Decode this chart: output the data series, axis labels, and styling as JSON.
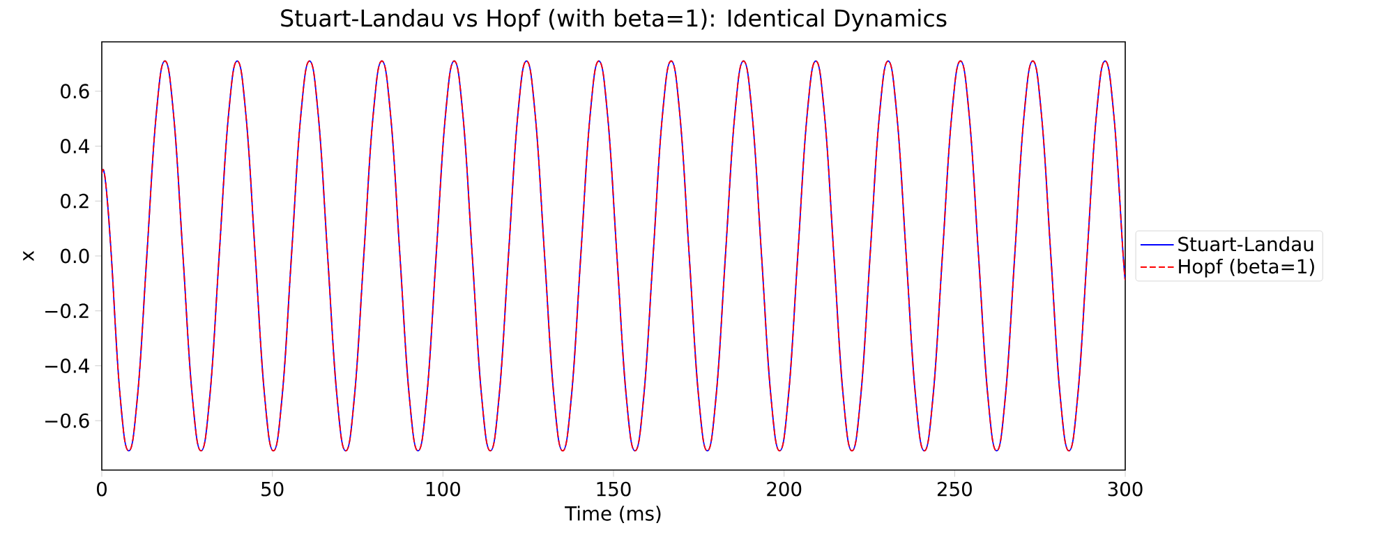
{
  "chart_data": {
    "type": "line",
    "title": "Stuart-Landau vs Hopf (with beta=1): Identical Dynamics",
    "xlabel": "Time (ms)",
    "ylabel": "x",
    "x": [
      0,
      0.6,
      1.5,
      2.8,
      5.3,
      7.9,
      10.55,
      13.2,
      15.85,
      18.5,
      21.15,
      23.8,
      26.45,
      29.1,
      31.75,
      34.4,
      37.05,
      39.7,
      42.35,
      45,
      47.65,
      50.3,
      52.95,
      55.6,
      58.25,
      60.9,
      63.55,
      66.2,
      68.85,
      71.5,
      74.15,
      76.8,
      79.45,
      82.1,
      84.75,
      87.4,
      90.05,
      92.7,
      95.35,
      98,
      100.65,
      103.3,
      105.95,
      108.6,
      111.25,
      113.9,
      116.55,
      119.2,
      121.85,
      124.5,
      127.15,
      129.8,
      132.45,
      135.1,
      137.75,
      140.4,
      143.05,
      145.7,
      148.35,
      151,
      153.65,
      156.3,
      158.95,
      161.6,
      164.25,
      166.9,
      169.55,
      172.2,
      174.85,
      177.5,
      180.15,
      182.8,
      185.45,
      188.1,
      190.75,
      193.4,
      196.05,
      198.7,
      201.35,
      204,
      206.65,
      209.3,
      211.95,
      214.6,
      217.25,
      219.9,
      222.55,
      225.2,
      227.85,
      230.5,
      233.15,
      235.8,
      238.45,
      241.1,
      243.75,
      246.4,
      249.05,
      251.7,
      254.35,
      257,
      259.65,
      262.3,
      264.95,
      267.6,
      270.25,
      272.9,
      275.55,
      278.2,
      280.85,
      283.5,
      286.15,
      288.8,
      291.45,
      294.1,
      296.75,
      299.4,
      300
    ],
    "series": [
      {
        "name": "Stuart-Landau",
        "color": "#0000ff",
        "line_style": "solid",
        "values": [
          0.3,
          0.31,
          0.22,
          0,
          -0.5,
          -0.71,
          -0.5,
          0,
          0.5,
          0.71,
          0.5,
          0,
          -0.5,
          -0.71,
          -0.5,
          0,
          0.5,
          0.71,
          0.5,
          0,
          -0.5,
          -0.71,
          -0.5,
          0,
          0.5,
          0.71,
          0.5,
          0,
          -0.5,
          -0.71,
          -0.5,
          0,
          0.5,
          0.71,
          0.5,
          0,
          -0.5,
          -0.71,
          -0.5,
          0,
          0.5,
          0.71,
          0.5,
          0,
          -0.5,
          -0.71,
          -0.5,
          0,
          0.5,
          0.71,
          0.5,
          0,
          -0.5,
          -0.71,
          -0.5,
          0,
          0.5,
          0.71,
          0.5,
          0,
          -0.5,
          -0.71,
          -0.5,
          0,
          0.5,
          0.71,
          0.5,
          0,
          -0.5,
          -0.71,
          -0.5,
          0,
          0.5,
          0.71,
          0.5,
          0,
          -0.5,
          -0.71,
          -0.5,
          0,
          0.5,
          0.71,
          0.5,
          0,
          -0.5,
          -0.71,
          -0.5,
          0,
          0.5,
          0.71,
          0.5,
          0,
          -0.5,
          -0.71,
          -0.5,
          0,
          0.5,
          0.71,
          0.5,
          0,
          -0.5,
          -0.71,
          -0.5,
          0,
          0.5,
          0.71,
          0.5,
          0,
          -0.5,
          -0.71,
          -0.5,
          0,
          0.5,
          0.71,
          0.5,
          0,
          -0.08
        ]
      },
      {
        "name": "Hopf (beta=1)",
        "color": "#ff0000",
        "line_style": "dashed",
        "values": [
          0.3,
          0.31,
          0.22,
          0,
          -0.5,
          -0.71,
          -0.5,
          0,
          0.5,
          0.71,
          0.5,
          0,
          -0.5,
          -0.71,
          -0.5,
          0,
          0.5,
          0.71,
          0.5,
          0,
          -0.5,
          -0.71,
          -0.5,
          0,
          0.5,
          0.71,
          0.5,
          0,
          -0.5,
          -0.71,
          -0.5,
          0,
          0.5,
          0.71,
          0.5,
          0,
          -0.5,
          -0.71,
          -0.5,
          0,
          0.5,
          0.71,
          0.5,
          0,
          -0.5,
          -0.71,
          -0.5,
          0,
          0.5,
          0.71,
          0.5,
          0,
          -0.5,
          -0.71,
          -0.5,
          0,
          0.5,
          0.71,
          0.5,
          0,
          -0.5,
          -0.71,
          -0.5,
          0,
          0.5,
          0.71,
          0.5,
          0,
          -0.5,
          -0.71,
          -0.5,
          0,
          0.5,
          0.71,
          0.5,
          0,
          -0.5,
          -0.71,
          -0.5,
          0,
          0.5,
          0.71,
          0.5,
          0,
          -0.5,
          -0.71,
          -0.5,
          0,
          0.5,
          0.71,
          0.5,
          0,
          -0.5,
          -0.71,
          -0.5,
          0,
          0.5,
          0.71,
          0.5,
          0,
          -0.5,
          -0.71,
          -0.5,
          0,
          0.5,
          0.71,
          0.5,
          0,
          -0.5,
          -0.71,
          -0.5,
          0,
          0.5,
          0.71,
          0.5,
          0,
          -0.08
        ]
      }
    ],
    "xlim": [
      0,
      300
    ],
    "ylim": [
      -0.78,
      0.78
    ],
    "xticks": [
      0,
      50,
      100,
      150,
      200,
      250,
      300
    ],
    "yticks": [
      {
        "value": -0.6,
        "label": "−0.6"
      },
      {
        "value": -0.4,
        "label": "−0.4"
      },
      {
        "value": -0.2,
        "label": "−0.2"
      },
      {
        "value": 0,
        "label": "0.0"
      },
      {
        "value": 0.2,
        "label": "0.2"
      },
      {
        "value": 0.4,
        "label": "0.4"
      },
      {
        "value": 0.6,
        "label": "0.6"
      }
    ],
    "legend": "center right",
    "grid": false,
    "marker": "none"
  }
}
